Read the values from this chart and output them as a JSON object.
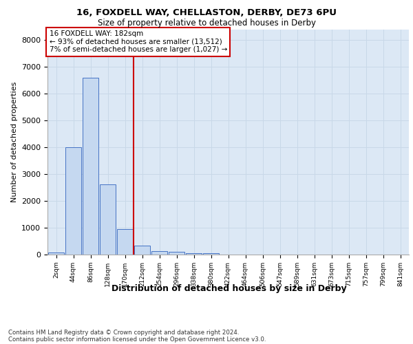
{
  "title1": "16, FOXDELL WAY, CHELLASTON, DERBY, DE73 6PU",
  "title2": "Size of property relative to detached houses in Derby",
  "xlabel": "Distribution of detached houses by size in Derby",
  "ylabel": "Number of detached properties",
  "categories": [
    "2sqm",
    "44sqm",
    "86sqm",
    "128sqm",
    "170sqm",
    "212sqm",
    "254sqm",
    "296sqm",
    "338sqm",
    "380sqm",
    "422sqm",
    "464sqm",
    "506sqm",
    "547sqm",
    "589sqm",
    "631sqm",
    "673sqm",
    "715sqm",
    "757sqm",
    "799sqm",
    "841sqm"
  ],
  "values": [
    70,
    4000,
    6600,
    2620,
    960,
    330,
    140,
    100,
    60,
    60,
    0,
    0,
    0,
    0,
    0,
    0,
    0,
    0,
    0,
    0,
    0
  ],
  "bar_color": "#c5d8f0",
  "bar_edge_color": "#4472c4",
  "vline_color": "#cc0000",
  "annotation_box_text": "16 FOXDELL WAY: 182sqm\n← 93% of detached houses are smaller (13,512)\n7% of semi-detached houses are larger (1,027) →",
  "annotation_box_facecolor": "white",
  "annotation_box_edgecolor": "#cc0000",
  "ylim": [
    0,
    8400
  ],
  "yticks": [
    0,
    1000,
    2000,
    3000,
    4000,
    5000,
    6000,
    7000,
    8000
  ],
  "grid_color": "#c8d8e8",
  "bg_color": "#dce8f5",
  "footnote1": "Contains HM Land Registry data © Crown copyright and database right 2024.",
  "footnote2": "Contains public sector information licensed under the Open Government Licence v3.0."
}
